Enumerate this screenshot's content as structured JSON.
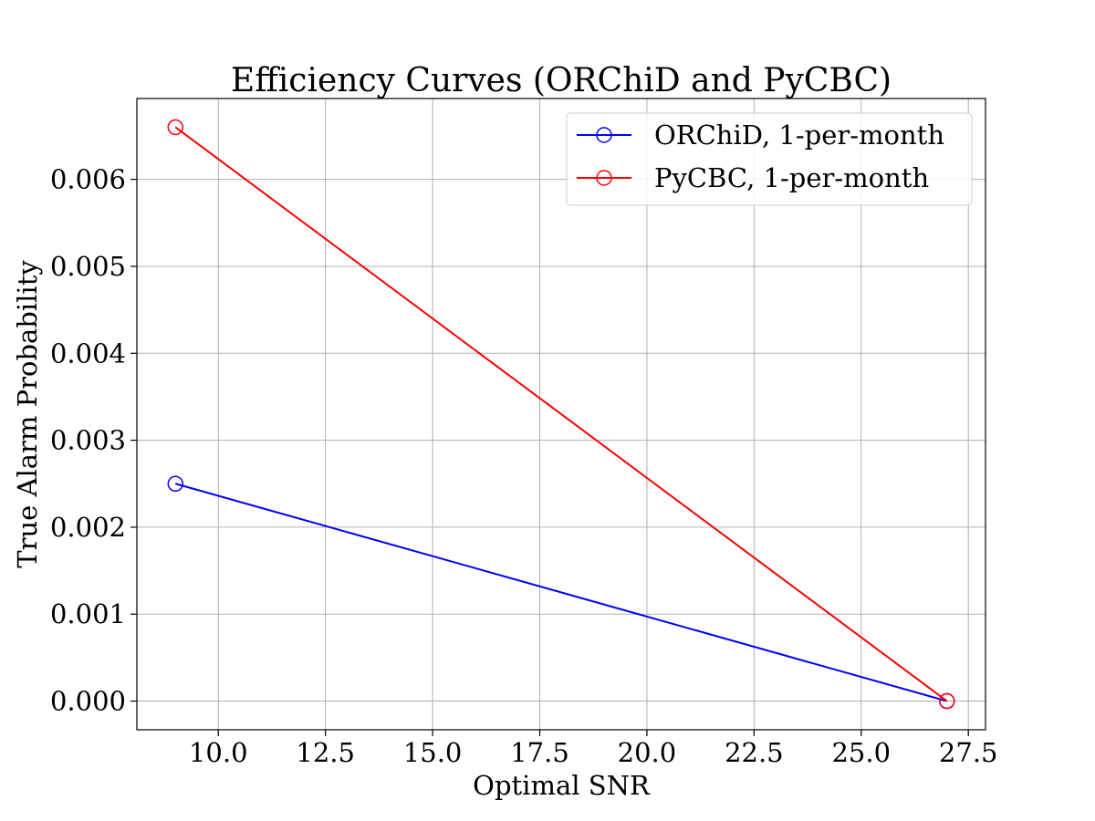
{
  "chart_data": {
    "type": "line",
    "title": "Efficiency Curves (ORChiD and PyCBC)",
    "xlabel": "Optimal SNR",
    "ylabel": "True Alarm Probability",
    "xlim": [
      8.1,
      27.9
    ],
    "ylim": [
      -0.00033,
      0.00693
    ],
    "x_ticks": [
      10.0,
      12.5,
      15.0,
      17.5,
      20.0,
      22.5,
      25.0,
      27.5
    ],
    "x_tick_labels": [
      "10.0",
      "12.5",
      "15.0",
      "17.5",
      "20.0",
      "22.5",
      "25.0",
      "27.5"
    ],
    "y_ticks": [
      0.0,
      0.001,
      0.002,
      0.003,
      0.004,
      0.005,
      0.006
    ],
    "y_tick_labels": [
      "0.000",
      "0.001",
      "0.002",
      "0.003",
      "0.004",
      "0.005",
      "0.006"
    ],
    "grid": true,
    "legend_position": "top-right",
    "series": [
      {
        "name": "ORChiD, 1-per-month",
        "color": "#0000ff",
        "marker": "open-circle",
        "x": [
          9,
          27
        ],
        "y": [
          0.0025,
          0.0
        ]
      },
      {
        "name": "PyCBC, 1-per-month",
        "color": "#ff0000",
        "marker": "open-circle",
        "x": [
          9,
          27
        ],
        "y": [
          0.0066,
          0.0
        ]
      }
    ]
  }
}
